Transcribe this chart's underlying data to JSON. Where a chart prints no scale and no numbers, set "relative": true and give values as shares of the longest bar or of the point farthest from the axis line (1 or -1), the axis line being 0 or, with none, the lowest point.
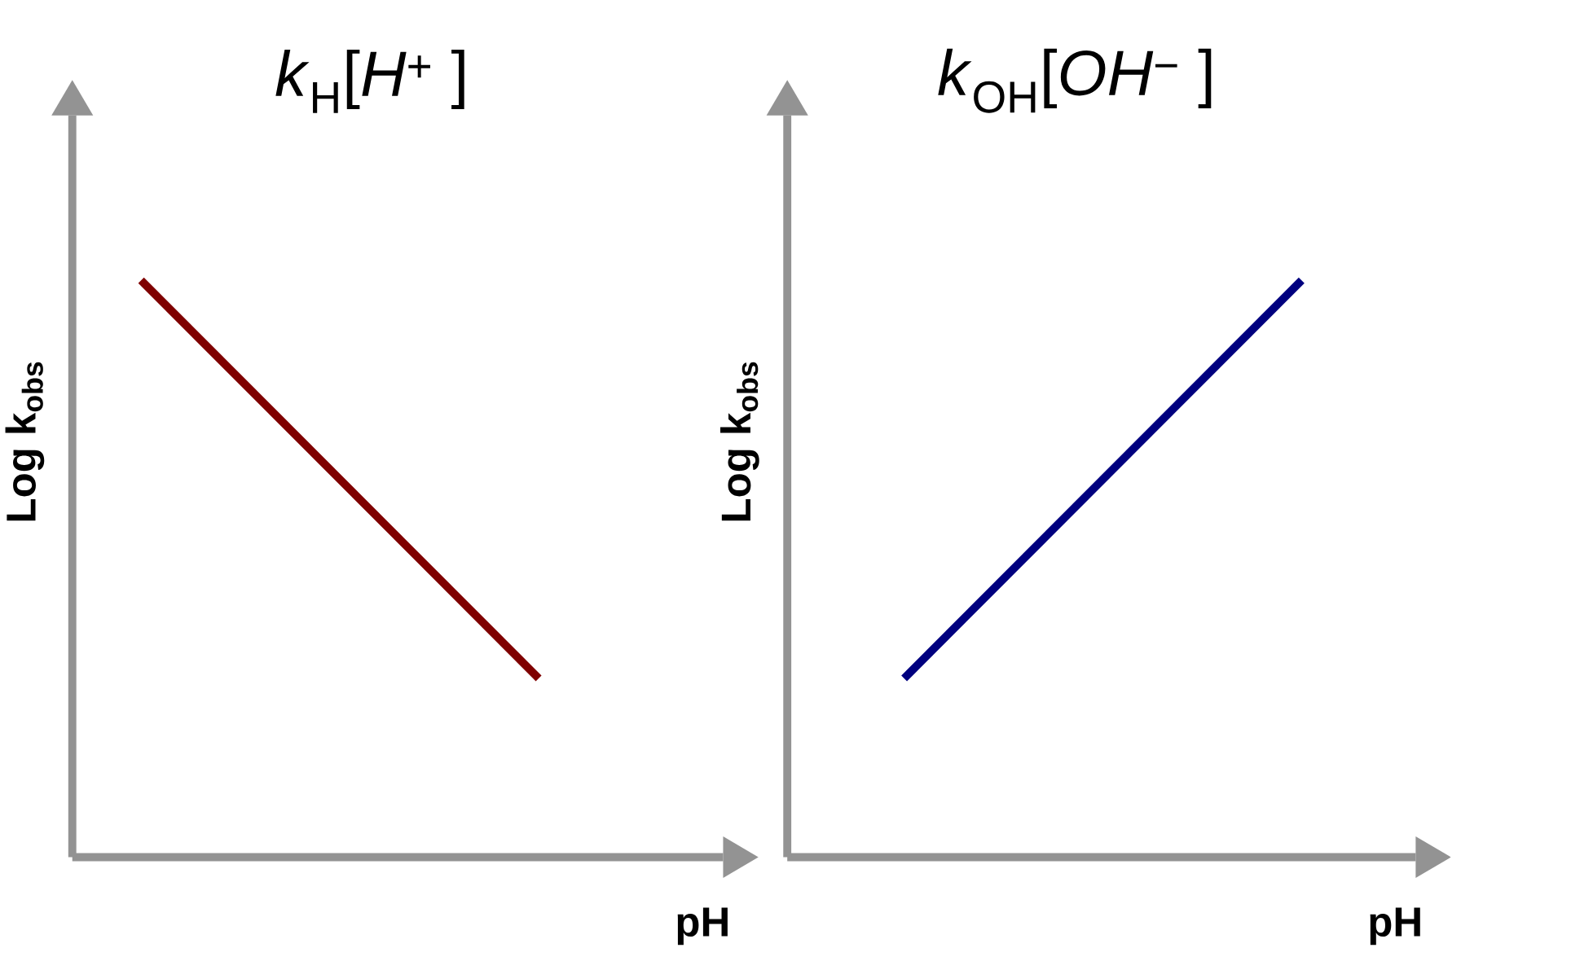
{
  "chart_data": [
    {
      "type": "line",
      "title": "*k*$_{H}$[*H*$^{+}$ ]",
      "xlabel": "pH",
      "ylabel": "Log k$_{obs}$",
      "relative": true,
      "categories": [
        null,
        null
      ],
      "series": [
        {
          "color": "#7f0000",
          "values": [
            1,
            0.31
          ]
        }
      ]
    },
    {
      "type": "line",
      "title": "*k*$_{OH}$[*OH*$^{−}$ ]",
      "xlabel": "pH",
      "ylabel": "Log k$_{obs}$",
      "relative": true,
      "categories": [
        null,
        null
      ],
      "series": [
        {
          "color": "#00007f",
          "values": [
            0.31,
            1
          ]
        }
      ]
    }
  ]
}
